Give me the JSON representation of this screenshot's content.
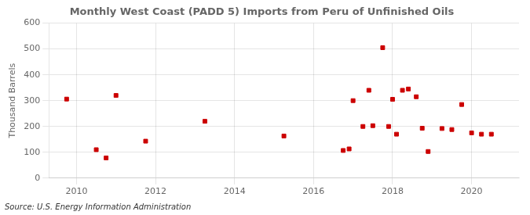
{
  "chart_data": {
    "type": "scatter",
    "title": "Monthly West Coast (PADD 5) Imports from Peru of Unfinished Oils",
    "ylabel": "Thousand Barrels",
    "annotations": [
      "Source: U.S. Energy Information Administration"
    ],
    "color": "#cc0000",
    "marker": "square",
    "grid": true,
    "xlim": [
      2009.3,
      2021.2
    ],
    "xticks": [
      2010,
      2012,
      2014,
      2016,
      2018,
      2020
    ],
    "ylim": [
      0,
      600
    ],
    "yticks": [
      0,
      100,
      200,
      300,
      400,
      500,
      600
    ],
    "x": [
      2009.75,
      2010.5,
      2010.75,
      2011.0,
      2011.75,
      2013.25,
      2015.25,
      2016.75,
      2016.9,
      2017.0,
      2017.25,
      2017.4,
      2017.5,
      2017.75,
      2017.9,
      2018.0,
      2018.1,
      2018.25,
      2018.4,
      2018.6,
      2018.75,
      2018.9,
      2019.25,
      2019.5,
      2019.75,
      2020.0,
      2020.25,
      2020.5
    ],
    "values": [
      306,
      110,
      78,
      320,
      143,
      220,
      163,
      107,
      113,
      300,
      200,
      340,
      203,
      505,
      200,
      305,
      170,
      340,
      345,
      315,
      193,
      103,
      192,
      188,
      285,
      175,
      170,
      170
    ]
  }
}
